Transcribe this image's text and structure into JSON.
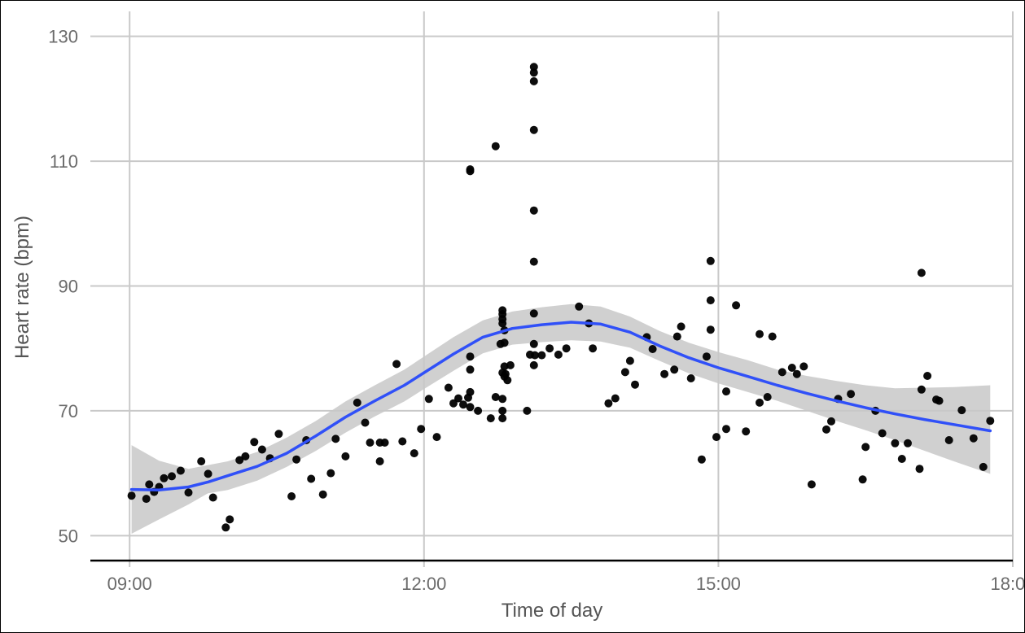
{
  "chart_data": {
    "type": "scatter",
    "title": "",
    "xlabel": "Time of day",
    "ylabel": "Heart rate (bpm)",
    "xlim": [
      8.6,
      18.0
    ],
    "ylim": [
      46,
      134
    ],
    "x_ticks": [
      9,
      12,
      15,
      18
    ],
    "x_tick_labels": [
      "09:00",
      "12:00",
      "15:00",
      "18:00"
    ],
    "y_ticks": [
      50,
      70,
      90,
      110,
      130
    ],
    "y_tick_labels": [
      "50",
      "70",
      "90",
      "110",
      "130"
    ],
    "grid": true,
    "legend": "none",
    "colors": {
      "points": "#000000",
      "smooth_line": "#3050f8",
      "confidence_band": "#c8c8c8",
      "grid": "#c9c9c9"
    },
    "series": [
      {
        "type": "scatter",
        "points": [
          [
            9.02,
            56.4
          ],
          [
            9.17,
            55.9
          ],
          [
            9.2,
            58.2
          ],
          [
            9.25,
            57.0
          ],
          [
            9.3,
            57.8
          ],
          [
            9.35,
            59.2
          ],
          [
            9.43,
            59.5
          ],
          [
            9.52,
            60.4
          ],
          [
            9.6,
            56.9
          ],
          [
            9.73,
            61.9
          ],
          [
            9.8,
            59.9
          ],
          [
            9.85,
            56.1
          ],
          [
            9.98,
            51.3
          ],
          [
            10.02,
            52.6
          ],
          [
            10.12,
            62.1
          ],
          [
            10.18,
            62.7
          ],
          [
            10.27,
            65.0
          ],
          [
            10.35,
            63.8
          ],
          [
            10.43,
            62.4
          ],
          [
            10.52,
            66.3
          ],
          [
            10.65,
            56.3
          ],
          [
            10.7,
            62.2
          ],
          [
            10.8,
            65.3
          ],
          [
            10.85,
            59.1
          ],
          [
            10.97,
            56.6
          ],
          [
            11.05,
            60.0
          ],
          [
            11.1,
            65.5
          ],
          [
            11.2,
            62.7
          ],
          [
            11.32,
            71.3
          ],
          [
            11.4,
            68.1
          ],
          [
            11.45,
            64.9
          ],
          [
            11.55,
            64.9
          ],
          [
            11.55,
            61.9
          ],
          [
            11.6,
            64.9
          ],
          [
            11.72,
            77.5
          ],
          [
            11.78,
            65.1
          ],
          [
            11.9,
            63.2
          ],
          [
            11.97,
            67.1
          ],
          [
            12.05,
            71.9
          ],
          [
            12.13,
            65.8
          ],
          [
            12.25,
            73.7
          ],
          [
            12.3,
            71.2
          ],
          [
            12.35,
            72.0
          ],
          [
            12.4,
            71.0
          ],
          [
            12.45,
            72.1
          ],
          [
            12.47,
            70.6
          ],
          [
            12.47,
            73.0
          ],
          [
            12.47,
            76.6
          ],
          [
            12.47,
            78.7
          ],
          [
            12.47,
            108.4
          ],
          [
            12.47,
            108.7
          ],
          [
            12.55,
            70.0
          ],
          [
            12.68,
            68.8
          ],
          [
            12.73,
            72.2
          ],
          [
            12.73,
            112.4
          ],
          [
            12.78,
            80.7
          ],
          [
            12.8,
            84.0
          ],
          [
            12.8,
            84.7
          ],
          [
            12.8,
            85.5
          ],
          [
            12.8,
            86.1
          ],
          [
            12.8,
            76.1
          ],
          [
            12.8,
            71.9
          ],
          [
            12.8,
            70.0
          ],
          [
            12.8,
            68.8
          ],
          [
            12.82,
            82.9
          ],
          [
            12.82,
            80.9
          ],
          [
            12.82,
            77.1
          ],
          [
            12.82,
            75.5
          ],
          [
            12.83,
            75.9
          ],
          [
            12.85,
            74.9
          ],
          [
            12.88,
            77.3
          ],
          [
            13.05,
            70.0
          ],
          [
            13.08,
            79.0
          ],
          [
            13.12,
            77.3
          ],
          [
            13.12,
            85.6
          ],
          [
            13.12,
            80.7
          ],
          [
            13.12,
            93.9
          ],
          [
            13.12,
            102.1
          ],
          [
            13.12,
            115.0
          ],
          [
            13.12,
            122.8
          ],
          [
            13.12,
            124.2
          ],
          [
            13.12,
            125.1
          ],
          [
            13.13,
            78.9
          ],
          [
            13.2,
            78.9
          ],
          [
            13.28,
            80.0
          ],
          [
            13.37,
            79.0
          ],
          [
            13.45,
            80.0
          ],
          [
            13.58,
            86.7
          ],
          [
            13.68,
            84.0
          ],
          [
            13.72,
            80.0
          ],
          [
            13.88,
            71.2
          ],
          [
            13.95,
            72.0
          ],
          [
            14.05,
            76.2
          ],
          [
            14.1,
            78.0
          ],
          [
            14.15,
            74.2
          ],
          [
            14.27,
            81.8
          ],
          [
            14.33,
            79.9
          ],
          [
            14.45,
            75.9
          ],
          [
            14.55,
            76.6
          ],
          [
            14.58,
            81.9
          ],
          [
            14.62,
            83.5
          ],
          [
            14.72,
            75.2
          ],
          [
            14.83,
            62.2
          ],
          [
            14.88,
            78.7
          ],
          [
            14.92,
            87.7
          ],
          [
            14.92,
            83.0
          ],
          [
            14.92,
            94.0
          ],
          [
            14.98,
            65.8
          ],
          [
            15.08,
            67.1
          ],
          [
            15.08,
            73.1
          ],
          [
            15.18,
            86.9
          ],
          [
            15.28,
            66.7
          ],
          [
            15.42,
            71.3
          ],
          [
            15.42,
            82.3
          ],
          [
            15.5,
            72.2
          ],
          [
            15.55,
            81.9
          ],
          [
            15.65,
            76.2
          ],
          [
            15.75,
            76.9
          ],
          [
            15.8,
            75.9
          ],
          [
            15.87,
            77.1
          ],
          [
            15.95,
            58.2
          ],
          [
            16.1,
            67.0
          ],
          [
            16.15,
            68.3
          ],
          [
            16.22,
            71.9
          ],
          [
            16.35,
            72.7
          ],
          [
            16.47,
            59.0
          ],
          [
            16.5,
            64.2
          ],
          [
            16.6,
            70.0
          ],
          [
            16.67,
            66.4
          ],
          [
            16.8,
            64.8
          ],
          [
            16.87,
            62.3
          ],
          [
            16.93,
            64.8
          ],
          [
            17.05,
            60.7
          ],
          [
            17.07,
            73.4
          ],
          [
            17.07,
            92.1
          ],
          [
            17.13,
            75.6
          ],
          [
            17.22,
            71.8
          ],
          [
            17.25,
            71.6
          ],
          [
            17.35,
            65.3
          ],
          [
            17.48,
            70.1
          ],
          [
            17.6,
            65.6
          ],
          [
            17.7,
            61.0
          ],
          [
            17.77,
            68.4
          ]
        ]
      },
      {
        "type": "smooth_line",
        "x": [
          9.02,
          9.3,
          9.6,
          9.8,
          10.0,
          10.3,
          10.6,
          10.9,
          11.2,
          11.5,
          11.8,
          12.0,
          12.3,
          12.6,
          12.9,
          13.2,
          13.5,
          13.8,
          14.1,
          14.4,
          14.7,
          15.0,
          15.3,
          15.6,
          15.9,
          16.2,
          16.5,
          16.8,
          17.1,
          17.4,
          17.77
        ],
        "y": [
          57.4,
          57.3,
          57.8,
          58.6,
          59.6,
          61.1,
          63.2,
          66.0,
          69.0,
          71.6,
          74.1,
          76.1,
          79.1,
          81.8,
          83.2,
          83.8,
          84.2,
          83.9,
          82.6,
          80.4,
          78.5,
          76.9,
          75.5,
          74.1,
          72.8,
          71.6,
          70.5,
          69.5,
          68.6,
          67.8,
          66.8
        ]
      },
      {
        "type": "confidence_band",
        "x": [
          9.02,
          9.3,
          9.6,
          9.8,
          10.0,
          10.3,
          10.6,
          10.9,
          11.2,
          11.5,
          11.8,
          12.0,
          12.3,
          12.6,
          12.9,
          13.2,
          13.5,
          13.8,
          14.1,
          14.4,
          14.7,
          15.0,
          15.3,
          15.6,
          15.9,
          16.2,
          16.5,
          16.8,
          17.1,
          17.4,
          17.77
        ],
        "lower": [
          50.3,
          52.6,
          55.0,
          56.8,
          57.3,
          58.8,
          61.0,
          63.6,
          66.5,
          69.1,
          71.5,
          73.5,
          76.4,
          79.2,
          80.6,
          81.0,
          81.3,
          81.1,
          80.1,
          78.0,
          76.0,
          74.4,
          73.0,
          71.6,
          70.0,
          68.4,
          66.9,
          65.3,
          63.6,
          61.9,
          59.9
        ],
        "upper": [
          64.5,
          62.0,
          60.7,
          61.3,
          61.9,
          63.4,
          65.7,
          68.4,
          71.5,
          74.1,
          76.6,
          78.7,
          81.8,
          84.5,
          85.9,
          86.6,
          87.1,
          86.7,
          85.1,
          82.8,
          80.9,
          79.4,
          78.1,
          76.6,
          75.6,
          74.8,
          74.1,
          73.6,
          73.7,
          73.8,
          74.1
        ]
      }
    ]
  }
}
